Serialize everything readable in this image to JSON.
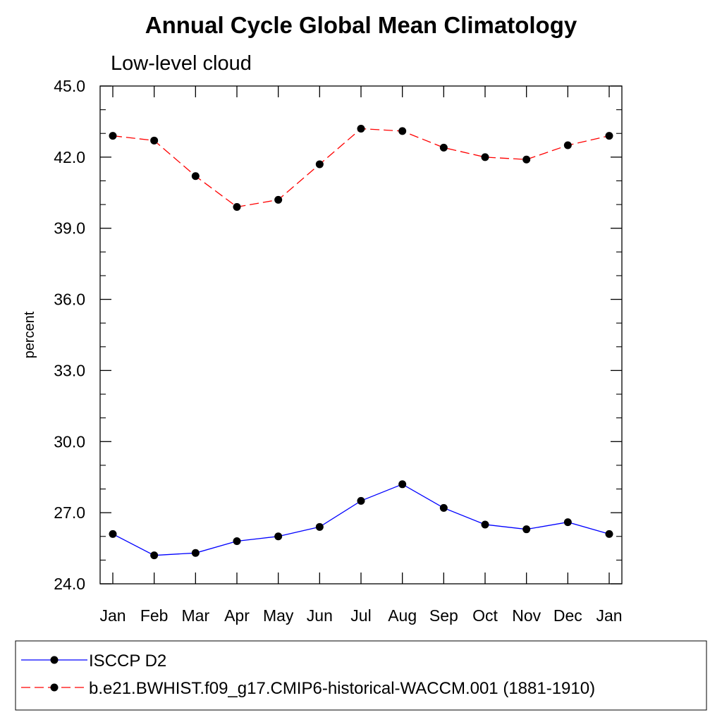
{
  "chart_data": {
    "type": "line",
    "title": "Annual Cycle Global Mean Climatology",
    "subtitle": "Low-level cloud",
    "ylabel": "percent",
    "xlabel": "",
    "categories": [
      "Jan",
      "Feb",
      "Mar",
      "Apr",
      "May",
      "Jun",
      "Jul",
      "Aug",
      "Sep",
      "Oct",
      "Nov",
      "Dec",
      "Jan"
    ],
    "ylim": [
      24.0,
      45.0
    ],
    "yticks": [
      "24.0",
      "27.0",
      "30.0",
      "33.0",
      "36.0",
      "39.0",
      "42.0",
      "45.0"
    ],
    "grid": false,
    "legend_position": "bottom",
    "series": [
      {
        "name": "ISCCP D2",
        "color": "#0000ff",
        "dash": "solid",
        "values": [
          26.1,
          25.2,
          25.3,
          25.8,
          26.0,
          26.4,
          27.5,
          28.2,
          27.2,
          26.5,
          26.3,
          26.6,
          26.1
        ]
      },
      {
        "name": "b.e21.BWHIST.f09_g17.CMIP6-historical-WACCM.001 (1881-1910)",
        "color": "#ff0000",
        "dash": "dashed",
        "values": [
          42.9,
          42.7,
          41.2,
          39.9,
          40.2,
          41.7,
          43.2,
          43.1,
          42.4,
          42.0,
          41.9,
          42.5,
          42.9
        ]
      }
    ]
  }
}
